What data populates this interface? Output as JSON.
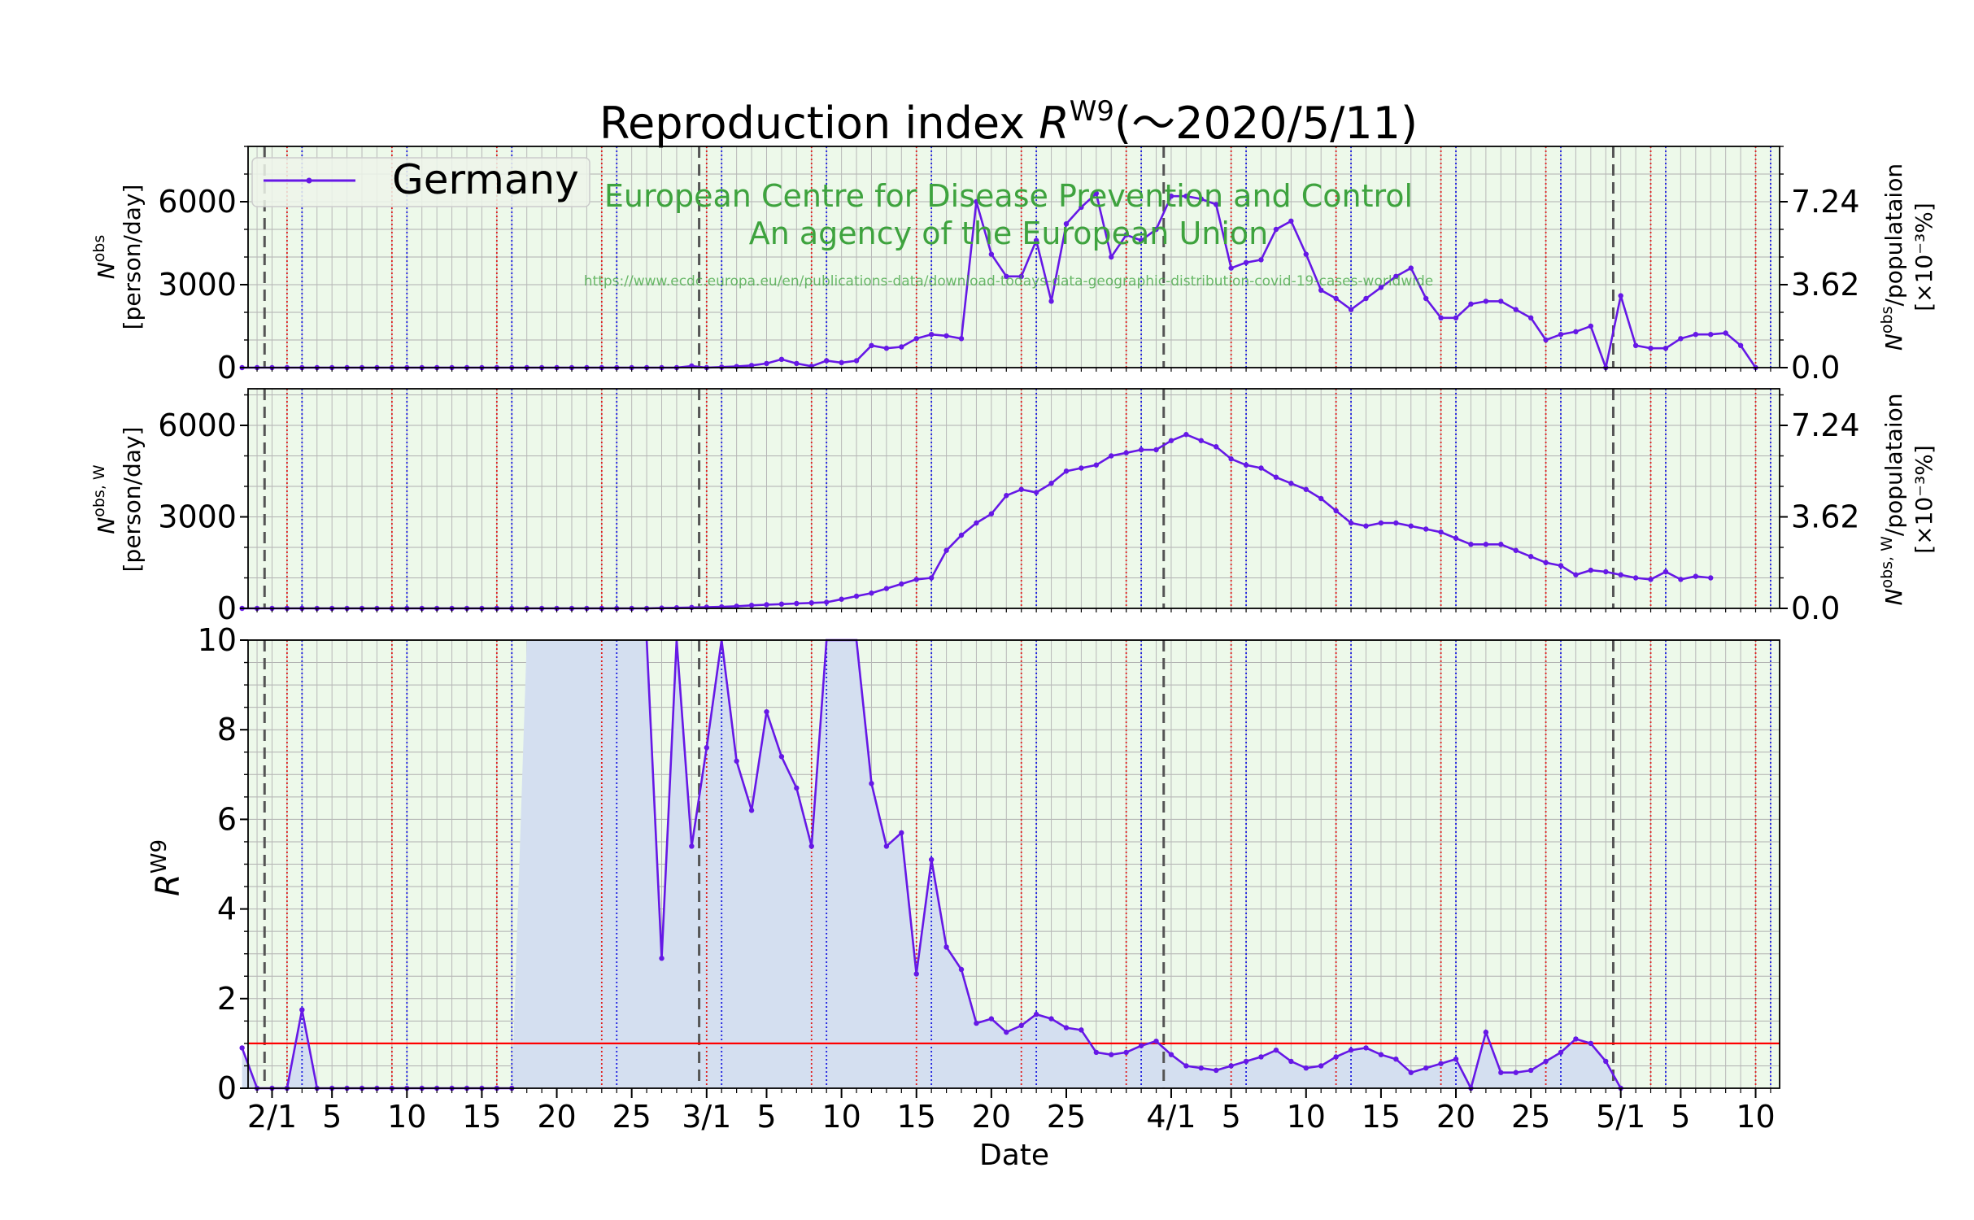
{
  "chart_data": {
    "type": "line",
    "title": "Reproduction index R^W9(〜2020/5/11)",
    "title_parts": {
      "main": "Reproduction index ",
      "symbol": "R",
      "superscript": "W9",
      "suffix": "(〜2020/5/11)"
    },
    "legend": {
      "label": "Germany",
      "placement": "top-left"
    },
    "watermark": {
      "line1": "European Centre for Disease Prevention and Control",
      "line2": "An agency of the European Union",
      "url": "https://www.ecdc.europa.eu/en/publications-data/download-todays-data-geographic-distribution-covid-19-cases-worldwide"
    },
    "xlabel": "Date",
    "x_ticks": [
      {
        "day": 0,
        "label": "2/1"
      },
      {
        "day": 4,
        "label": "5"
      },
      {
        "day": 9,
        "label": "10"
      },
      {
        "day": 14,
        "label": "15"
      },
      {
        "day": 19,
        "label": "20"
      },
      {
        "day": 24,
        "label": "25"
      },
      {
        "day": 29,
        "label": "3/1"
      },
      {
        "day": 33,
        "label": "5"
      },
      {
        "day": 38,
        "label": "10"
      },
      {
        "day": 43,
        "label": "15"
      },
      {
        "day": 48,
        "label": "20"
      },
      {
        "day": 53,
        "label": "25"
      },
      {
        "day": 60,
        "label": "4/1"
      },
      {
        "day": 64,
        "label": "5"
      },
      {
        "day": 69,
        "label": "10"
      },
      {
        "day": 74,
        "label": "15"
      },
      {
        "day": 79,
        "label": "20"
      },
      {
        "day": 84,
        "label": "25"
      },
      {
        "day": 90,
        "label": "5/1"
      },
      {
        "day": 94,
        "label": "5"
      },
      {
        "day": 99,
        "label": "10"
      }
    ],
    "x_range_days": [
      -1.6,
      100.6
    ],
    "x_start_date": "2020/1/30",
    "month_start_days": [
      0,
      29,
      60,
      90
    ],
    "panels": [
      {
        "name": "daily",
        "ylabel": "N^obs",
        "ylabel_unit": "[person/day]",
        "ylabel_sup": "obs",
        "ylim": [
          0,
          8000
        ],
        "yticks": [
          0,
          3000,
          6000
        ],
        "ytick_labels": [
          "0",
          "3000",
          "6000"
        ],
        "right_ylabel": "N^obs/populataion",
        "right_ylabel_sup": "obs",
        "right_ylabel_unit": "[×10⁻³%]",
        "right_ticks": [
          "0.0",
          "3.62",
          "7.24"
        ],
        "values": [
          0,
          0,
          0,
          0,
          0,
          0,
          0,
          0,
          0,
          0,
          0,
          0,
          0,
          0,
          0,
          0,
          0,
          0,
          0,
          0,
          0,
          0,
          0,
          0,
          0,
          0,
          0,
          0,
          0,
          0,
          60,
          0,
          20,
          40,
          80,
          150,
          300,
          150,
          50,
          250,
          180,
          250,
          800,
          700,
          750,
          1050,
          1200,
          1150,
          1050,
          6000,
          4100,
          3300,
          3300,
          4600,
          2400,
          5200,
          5800,
          6300,
          4000,
          4800,
          4600,
          5000,
          6200,
          6200,
          6100,
          5900,
          3600,
          3800,
          3900,
          5000,
          5300,
          4100,
          2800,
          2500,
          2100,
          2500,
          2900,
          3300,
          3600,
          2500,
          1800,
          1800,
          2300,
          2400,
          2400,
          2100,
          1800,
          1000,
          1200,
          1300,
          1500,
          0,
          2600,
          800,
          700,
          700,
          1050,
          1200,
          1200,
          1250,
          800,
          0
        ]
      },
      {
        "name": "weekly",
        "ylabel": "N^obs,W",
        "ylabel_unit": "[person/day]",
        "ylabel_sup": "obs, W",
        "ylim": [
          0,
          7200
        ],
        "yticks": [
          0,
          3000,
          6000
        ],
        "ytick_labels": [
          "0",
          "3000",
          "6000"
        ],
        "right_ylabel": "N^obs,W/populataion",
        "right_ylabel_sup": "obs, W",
        "right_ylabel_unit": "[×10⁻³%]",
        "right_ticks": [
          "0.0",
          "3.62",
          "7.24"
        ],
        "values": [
          0,
          0,
          0,
          0,
          0,
          0,
          0,
          0,
          0,
          0,
          0,
          0,
          0,
          0,
          0,
          0,
          0,
          0,
          0,
          0,
          0,
          0,
          0,
          0,
          0,
          0,
          0,
          0,
          10,
          20,
          30,
          40,
          50,
          70,
          100,
          120,
          140,
          160,
          180,
          200,
          300,
          400,
          500,
          650,
          800,
          950,
          1000,
          1900,
          2400,
          2800,
          3100,
          3700,
          3900,
          3800,
          4100,
          4500,
          4600,
          4700,
          5000,
          5100,
          5200,
          5200,
          5500,
          5700,
          5500,
          5300,
          4900,
          4700,
          4600,
          4300,
          4100,
          3900,
          3600,
          3200,
          2800,
          2700,
          2800,
          2800,
          2700,
          2600,
          2500,
          2300,
          2100,
          2100,
          2100,
          1900,
          1700,
          1500,
          1400,
          1100,
          1250,
          1200,
          1100,
          1000,
          950,
          1200,
          950,
          1050,
          1000
        ]
      },
      {
        "name": "R",
        "ylabel": "R^W9",
        "ylabel_sup": "W9",
        "ylim": [
          0,
          10
        ],
        "yticks": [
          0,
          2,
          4,
          6,
          8,
          10
        ],
        "ytick_labels": [
          "0",
          "2",
          "4",
          "6",
          "8",
          "10"
        ],
        "reference_line": 1,
        "values": [
          0.9,
          0,
          0,
          0,
          1.75,
          0,
          0,
          0,
          0,
          0,
          0,
          0,
          0,
          0,
          0,
          0,
          0,
          0,
          0,
          null,
          null,
          null,
          null,
          null,
          null,
          null,
          null,
          10.2,
          2.9,
          10,
          5.4,
          7.6,
          10.5,
          7.3,
          6.2,
          8.4,
          7.4,
          6.7,
          5.4,
          10.2,
          10.2,
          10.2,
          6.8,
          5.4,
          5.7,
          2.55,
          5.1,
          3.15,
          2.65,
          1.45,
          1.55,
          1.25,
          1.4,
          1.65,
          1.55,
          1.35,
          1.3,
          0.8,
          0.75,
          0.8,
          0.95,
          1.05,
          0.75,
          0.5,
          0.45,
          0.4,
          0.5,
          0.6,
          0.7,
          0.85,
          0.6,
          0.45,
          0.5,
          0.7,
          0.85,
          0.9,
          0.75,
          0.65,
          0.35,
          0.45,
          0.55,
          0.65,
          0,
          1.25,
          0.35,
          0.35,
          0.4,
          0.6,
          0.8,
          1.1,
          1.0,
          0.6,
          0
        ]
      }
    ],
    "grid": true,
    "colors": {
      "series": "#6618e6",
      "panel_bg": "#edf9ea",
      "fill": "#d4dff0",
      "reference": "#ff0000",
      "sunday_line": "#1c1ce0",
      "saturday_line": "#e01c1c",
      "month_line": "#555555",
      "watermark": "#3ea33e"
    }
  }
}
